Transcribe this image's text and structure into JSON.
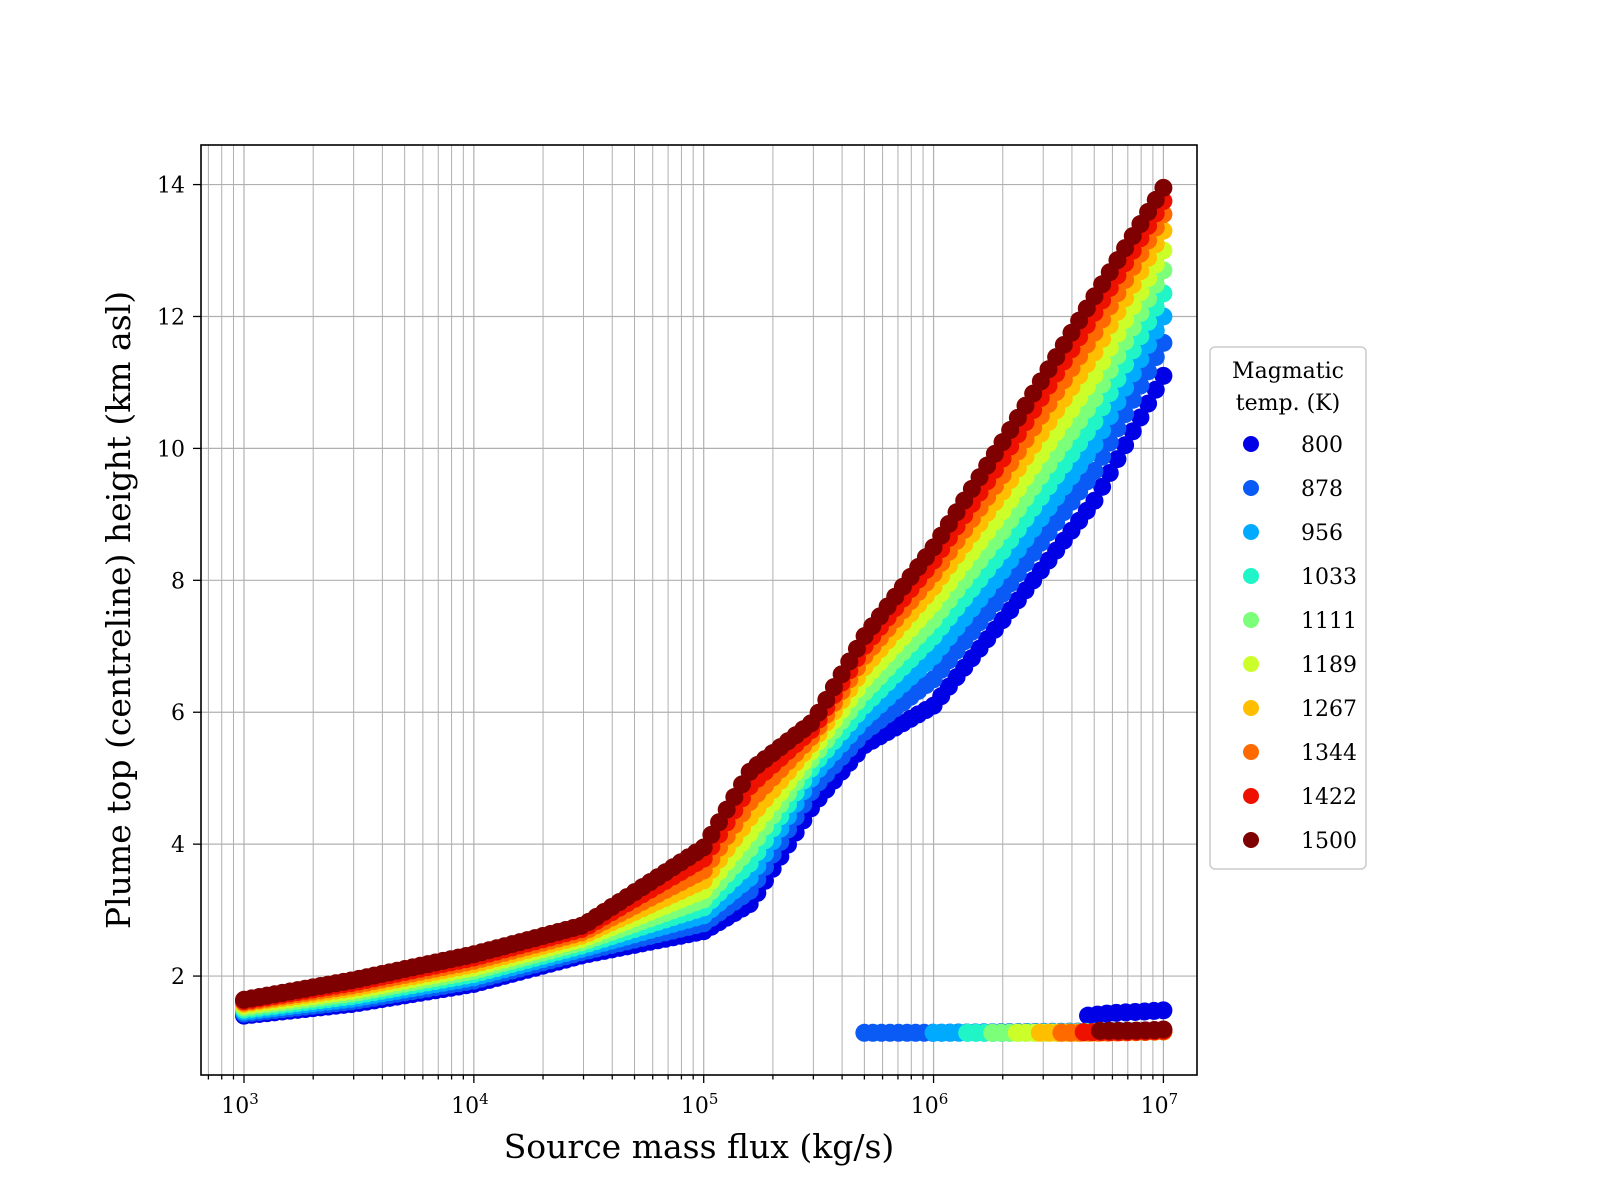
{
  "chart_data": {
    "type": "scatter",
    "title": "",
    "xlabel": "Source mass flux (kg/s)",
    "ylabel": "Plume top (centreline) height (km asl)",
    "xscale": "log",
    "xlim": [
      650,
      14000000
    ],
    "ylim": [
      0.5,
      14.6
    ],
    "grid": true,
    "x_ticks": [
      1000,
      10000,
      100000,
      1000000,
      10000000
    ],
    "x_tick_labels": [
      {
        "base": "10",
        "exp": "3"
      },
      {
        "base": "10",
        "exp": "4"
      },
      {
        "base": "10",
        "exp": "5"
      },
      {
        "base": "10",
        "exp": "6"
      },
      {
        "base": "10",
        "exp": "7"
      }
    ],
    "y_ticks": [
      2,
      4,
      6,
      8,
      10,
      12,
      14
    ],
    "y_tick_labels": [
      "2",
      "4",
      "6",
      "8",
      "10",
      "12",
      "14"
    ],
    "legend": {
      "title_lines": [
        "Magmatic",
        "temp. (K)"
      ],
      "placement": "right, outside plot"
    },
    "colormap": "jet",
    "series": [
      {
        "name": "800",
        "color": "#0000e6",
        "x": [
          1000,
          3000,
          10000,
          30000,
          100000,
          160000,
          300000,
          500000,
          1000000,
          2000000,
          5000000,
          10000000
        ],
        "y": [
          1.4,
          1.58,
          1.88,
          2.32,
          2.68,
          3.1,
          4.6,
          5.5,
          6.1,
          7.4,
          9.2,
          11.1
        ],
        "secondary": {
          "x": [
            4700000,
            6000000,
            8000000,
            10000000
          ],
          "y": [
            1.4,
            1.44,
            1.46,
            1.48
          ]
        }
      },
      {
        "name": "878",
        "color": "#0a5af5",
        "x": [
          1000,
          3000,
          10000,
          30000,
          100000,
          160000,
          300000,
          500000,
          1000000,
          2000000,
          5000000,
          10000000
        ],
        "y": [
          1.43,
          1.62,
          1.93,
          2.37,
          2.8,
          3.3,
          4.85,
          5.7,
          6.5,
          7.8,
          9.65,
          11.6
        ],
        "secondary": {
          "x": [
            500000,
            1000000,
            2000000,
            5000000,
            10000000
          ],
          "y": [
            1.14,
            1.14,
            1.15,
            1.16,
            1.17
          ]
        }
      },
      {
        "name": "956",
        "color": "#00aaff",
        "x": [
          1000,
          3000,
          10000,
          30000,
          100000,
          160000,
          300000,
          500000,
          1000000,
          2000000,
          5000000,
          10000000
        ],
        "y": [
          1.46,
          1.66,
          1.98,
          2.42,
          2.92,
          3.5,
          5.05,
          5.9,
          6.85,
          8.15,
          10.05,
          12.0
        ],
        "secondary": {
          "x": [
            1000000,
            2000000,
            5000000,
            10000000
          ],
          "y": [
            1.14,
            1.14,
            1.15,
            1.16
          ]
        }
      },
      {
        "name": "1033",
        "color": "#20f5c8",
        "x": [
          1000,
          3000,
          10000,
          30000,
          100000,
          160000,
          300000,
          500000,
          1000000,
          2000000,
          5000000,
          10000000
        ],
        "y": [
          1.49,
          1.7,
          2.03,
          2.47,
          3.04,
          3.72,
          5.2,
          6.1,
          7.15,
          8.45,
          10.4,
          12.35
        ],
        "secondary": {
          "x": [
            1400000,
            2000000,
            5000000,
            10000000
          ],
          "y": [
            1.14,
            1.14,
            1.15,
            1.16
          ]
        }
      },
      {
        "name": "1111",
        "color": "#7cff79",
        "x": [
          1000,
          3000,
          10000,
          30000,
          100000,
          160000,
          300000,
          500000,
          1000000,
          2000000,
          5000000,
          10000000
        ],
        "y": [
          1.52,
          1.74,
          2.08,
          2.52,
          3.16,
          3.95,
          5.33,
          6.3,
          7.4,
          8.75,
          10.75,
          12.7
        ],
        "secondary": {
          "x": [
            1800000,
            3000000,
            5000000,
            10000000
          ],
          "y": [
            1.14,
            1.14,
            1.15,
            1.16
          ]
        }
      },
      {
        "name": "1189",
        "color": "#ccff2a",
        "x": [
          1000,
          3000,
          10000,
          30000,
          100000,
          160000,
          300000,
          500000,
          1000000,
          2000000,
          5000000,
          10000000
        ],
        "y": [
          1.55,
          1.78,
          2.13,
          2.57,
          3.3,
          4.18,
          5.45,
          6.5,
          7.65,
          9.05,
          11.1,
          13.0
        ],
        "secondary": {
          "x": [
            2300000,
            4000000,
            6000000,
            10000000
          ],
          "y": [
            1.14,
            1.14,
            1.15,
            1.16
          ]
        }
      },
      {
        "name": "1267",
        "color": "#ffbe00",
        "x": [
          1000,
          3000,
          10000,
          30000,
          100000,
          160000,
          300000,
          500000,
          1000000,
          2000000,
          5000000,
          10000000
        ],
        "y": [
          1.58,
          1.82,
          2.18,
          2.62,
          3.45,
          4.42,
          5.56,
          6.68,
          7.9,
          9.35,
          11.45,
          13.3
        ],
        "secondary": {
          "x": [
            2900000,
            4500000,
            7000000,
            10000000
          ],
          "y": [
            1.14,
            1.14,
            1.15,
            1.16
          ]
        }
      },
      {
        "name": "1344",
        "color": "#ff6a00",
        "x": [
          1000,
          3000,
          10000,
          30000,
          100000,
          160000,
          300000,
          500000,
          1000000,
          2000000,
          5000000,
          10000000
        ],
        "y": [
          1.6,
          1.86,
          2.23,
          2.67,
          3.6,
          4.66,
          5.66,
          6.85,
          8.1,
          9.6,
          11.75,
          13.55
        ],
        "secondary": {
          "x": [
            3600000,
            5500000,
            8000000,
            10000000
          ],
          "y": [
            1.14,
            1.14,
            1.15,
            1.16
          ]
        }
      },
      {
        "name": "1422",
        "color": "#ee1100",
        "x": [
          1000,
          3000,
          10000,
          30000,
          100000,
          160000,
          300000,
          500000,
          1000000,
          2000000,
          5000000,
          10000000
        ],
        "y": [
          1.62,
          1.9,
          2.28,
          2.72,
          3.78,
          4.9,
          5.76,
          7.0,
          8.3,
          9.85,
          12.05,
          13.75
        ],
        "secondary": {
          "x": [
            4500000,
            6500000,
            8500000,
            10000000
          ],
          "y": [
            1.15,
            1.15,
            1.16,
            1.17
          ]
        }
      },
      {
        "name": "1500",
        "color": "#7f0000",
        "x": [
          1000,
          3000,
          10000,
          30000,
          100000,
          160000,
          300000,
          500000,
          1000000,
          2000000,
          5000000,
          10000000
        ],
        "y": [
          1.64,
          1.94,
          2.33,
          2.77,
          3.95,
          5.12,
          5.86,
          7.15,
          8.5,
          10.1,
          12.3,
          13.95
        ],
        "secondary": {
          "x": [
            5300000,
            7000000,
            9000000,
            10000000
          ],
          "y": [
            1.17,
            1.17,
            1.18,
            1.19
          ]
        }
      }
    ]
  }
}
